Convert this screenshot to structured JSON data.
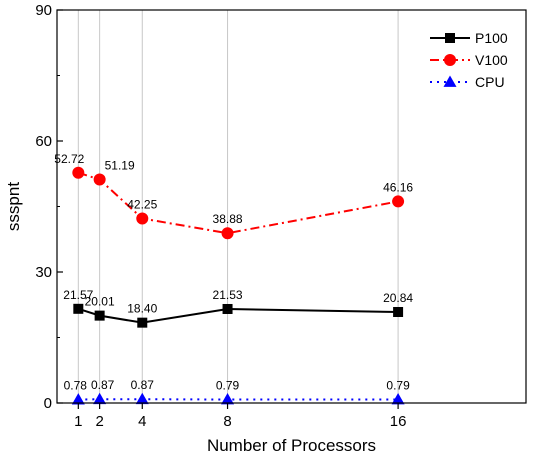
{
  "chart_data": {
    "type": "line",
    "title": "",
    "xlabel": "Number of Processors",
    "ylabel": "ssspnt",
    "x": [
      1,
      2,
      4,
      8,
      16
    ],
    "xticks": [
      "1",
      "2",
      "4",
      "8",
      "16"
    ],
    "xlim": [
      0,
      22
    ],
    "ylim": [
      0,
      90
    ],
    "yticks": [
      "0",
      "30",
      "60",
      "90"
    ],
    "grid": "vertical lines at x ticks",
    "legend_position": "top-right",
    "series": [
      {
        "name": "P100",
        "values": [
          21.57,
          20.01,
          18.4,
          21.53,
          20.84
        ],
        "labels": [
          "21.57",
          "20.01",
          "18.40",
          "21.53",
          "20.84"
        ],
        "color": "#000000",
        "marker": "square",
        "line_style": "solid"
      },
      {
        "name": "V100",
        "values": [
          52.72,
          51.19,
          42.25,
          38.88,
          46.16
        ],
        "labels": [
          "52.72",
          "51.19",
          "42.25",
          "38.88",
          "46.16"
        ],
        "color": "#ff0000",
        "marker": "circle",
        "line_style": "dash-dot"
      },
      {
        "name": "CPU",
        "values": [
          0.78,
          0.87,
          0.87,
          0.79,
          0.79
        ],
        "labels": [
          "0.78",
          "0.87",
          "0.87",
          "0.79",
          "0.79"
        ],
        "color": "#0000ff",
        "marker": "triangle",
        "line_style": "dotted"
      }
    ]
  }
}
